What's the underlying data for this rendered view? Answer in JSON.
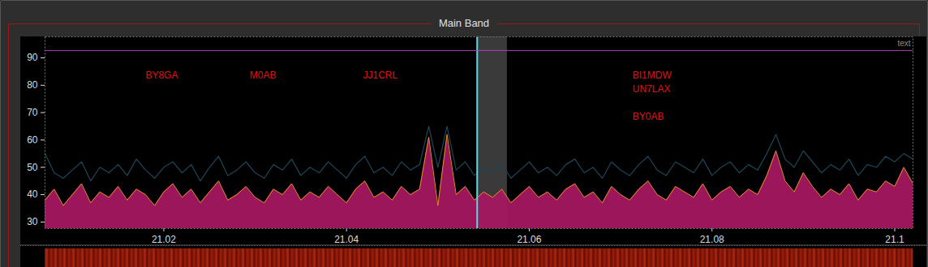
{
  "chart_data": {
    "type": "area",
    "title": "Main Band",
    "x": [
      21.007,
      21.008,
      21.009,
      21.01,
      21.011,
      21.012,
      21.013,
      21.014,
      21.015,
      21.016,
      21.017,
      21.018,
      21.019,
      21.02,
      21.021,
      21.022,
      21.023,
      21.024,
      21.025,
      21.026,
      21.027,
      21.028,
      21.029,
      21.03,
      21.031,
      21.032,
      21.033,
      21.034,
      21.035,
      21.036,
      21.037,
      21.038,
      21.039,
      21.04,
      21.041,
      21.042,
      21.043,
      21.044,
      21.045,
      21.046,
      21.047,
      21.048,
      21.049,
      21.05,
      21.051,
      21.052,
      21.053,
      21.054,
      21.055,
      21.056,
      21.057,
      21.058,
      21.059,
      21.06,
      21.061,
      21.062,
      21.063,
      21.064,
      21.065,
      21.066,
      21.067,
      21.068,
      21.069,
      21.07,
      21.071,
      21.072,
      21.073,
      21.074,
      21.075,
      21.076,
      21.077,
      21.078,
      21.079,
      21.08,
      21.081,
      21.082,
      21.083,
      21.084,
      21.085,
      21.086,
      21.087,
      21.088,
      21.089,
      21.09,
      21.091,
      21.092,
      21.093,
      21.094,
      21.095,
      21.096,
      21.097,
      21.098,
      21.099,
      21.1,
      21.101,
      21.102
    ],
    "series": [
      {
        "type": "line",
        "color": "#1e4658",
        "values": [
          55,
          48,
          46,
          49,
          52,
          45,
          50,
          48,
          51,
          47,
          53,
          49,
          46,
          50,
          52,
          48,
          51,
          45,
          50,
          54,
          47,
          49,
          52,
          48,
          46,
          51,
          49,
          53,
          47,
          50,
          48,
          52,
          49,
          46,
          51,
          54,
          48,
          50,
          47,
          52,
          49,
          51,
          65,
          50,
          65,
          49,
          52,
          47,
          50,
          48,
          51,
          46,
          49,
          52,
          48,
          50,
          47,
          51,
          53,
          48,
          50,
          46,
          52,
          49,
          47,
          51,
          54,
          49,
          47,
          52,
          50,
          48,
          53,
          47,
          50,
          52,
          48,
          51,
          49,
          55,
          62,
          53,
          50,
          56,
          52,
          48,
          51,
          49,
          53,
          47,
          51,
          50,
          54,
          52,
          55,
          53
        ]
      },
      {
        "type": "area",
        "color": "#a3175f",
        "values": [
          38,
          42,
          36,
          40,
          44,
          37,
          41,
          39,
          43,
          38,
          42,
          40,
          36,
          41,
          44,
          39,
          42,
          37,
          41,
          45,
          38,
          40,
          43,
          39,
          37,
          42,
          40,
          44,
          38,
          41,
          39,
          43,
          40,
          37,
          42,
          45,
          39,
          41,
          38,
          43,
          40,
          42,
          61,
          36,
          62,
          40,
          43,
          38,
          41,
          39,
          42,
          37,
          40,
          43,
          39,
          41,
          38,
          42,
          44,
          39,
          41,
          37,
          43,
          40,
          38,
          42,
          45,
          40,
          38,
          43,
          41,
          39,
          44,
          38,
          41,
          43,
          39,
          42,
          40,
          47,
          56,
          45,
          41,
          48,
          43,
          39,
          42,
          40,
          44,
          38,
          42,
          41,
          45,
          43,
          50,
          44
        ]
      }
    ],
    "xlim": [
      21.007,
      21.102
    ],
    "xticks": [
      21.02,
      21.04,
      21.06,
      21.08,
      21.1
    ],
    "ylim": [
      27.6,
      97.7
    ],
    "yticks": [
      30,
      40,
      50,
      60,
      70,
      80,
      90
    ],
    "grid": false,
    "spans": [
      {
        "x1": 21.0543,
        "x2": 21.0576,
        "color": "#3a3a3a"
      }
    ],
    "vlines": [
      {
        "x": 21.0543,
        "color": "#5fd7e0"
      }
    ],
    "hlines": [
      {
        "y": 92.7,
        "color": "#b040c0"
      }
    ],
    "annotations": [
      {
        "text": "BY8GA",
        "x": 21.018,
        "y": 83.5,
        "color": "#e01212"
      },
      {
        "text": "M0AB",
        "x": 21.0294,
        "y": 83.5,
        "color": "#e01212"
      },
      {
        "text": "JJ1CRL",
        "x": 21.0418,
        "y": 83.5,
        "color": "#e01212"
      },
      {
        "text": "BI1MDW",
        "x": 21.0713,
        "y": 83.5,
        "color": "#e01212"
      },
      {
        "text": "UN7LAX",
        "x": 21.0713,
        "y": 78.5,
        "color": "#e01212"
      },
      {
        "text": "BY0AB",
        "x": 21.0713,
        "y": 68.4,
        "color": "#e01212"
      },
      {
        "text": "text",
        "x": 21.102,
        "y": 95.3,
        "color": "#8a8a8a"
      }
    ]
  }
}
